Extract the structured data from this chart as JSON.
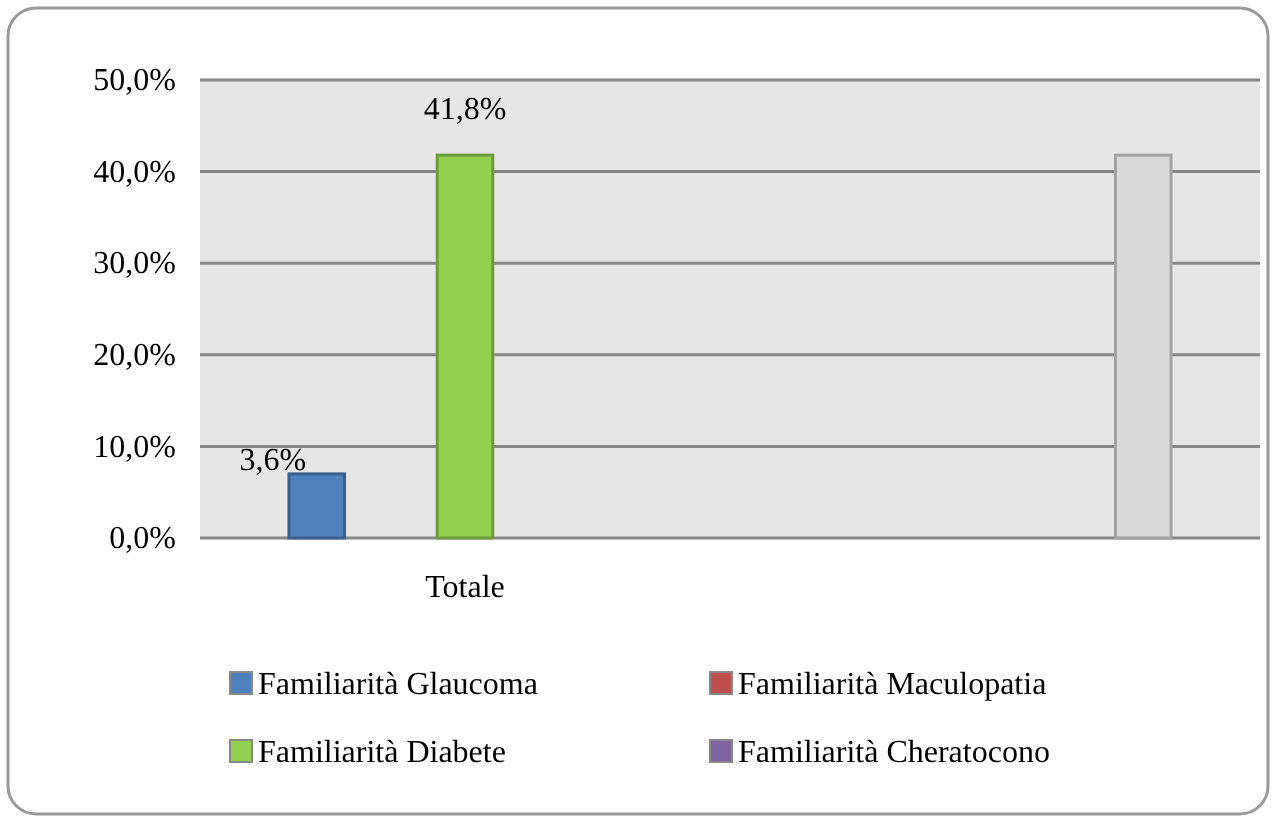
{
  "chart_data": {
    "type": "bar",
    "categories": [
      "Totale",
      null
    ],
    "ylim": [
      0,
      50
    ],
    "yticks": [
      {
        "value": 0,
        "label": "0,0%"
      },
      {
        "value": 10,
        "label": "10,0%"
      },
      {
        "value": 20,
        "label": "20,0%"
      },
      {
        "value": 30,
        "label": "30,0%"
      },
      {
        "value": 40,
        "label": "40,0%"
      },
      {
        "value": 50,
        "label": "50,0%"
      }
    ],
    "grid": "y",
    "legend": "bottom",
    "series": [
      {
        "name": "Familiarità Glaucoma",
        "color": "#4f81bd",
        "values": [
          7.0,
          null
        ],
        "value_labels": [
          null,
          null
        ]
      },
      {
        "name": "Familiarità Maculopatia",
        "color": "#c0504d",
        "values": [
          null,
          null
        ],
        "value_labels": [
          null,
          null
        ]
      },
      {
        "name": "Familiarità Diabete",
        "color": "#92d050",
        "values": [
          41.8,
          null
        ],
        "value_labels": [
          "41,8%",
          null
        ]
      },
      {
        "name": "Familiarità Cheratocono",
        "color": "#8064a2",
        "values": [
          null,
          null
        ],
        "value_labels": [
          null,
          null
        ]
      },
      {
        "color": "#d9d9d9",
        "values": [
          null,
          41.8
        ],
        "value_labels": [
          null,
          null
        ]
      }
    ],
    "annotations": [
      "3,6%"
    ]
  }
}
